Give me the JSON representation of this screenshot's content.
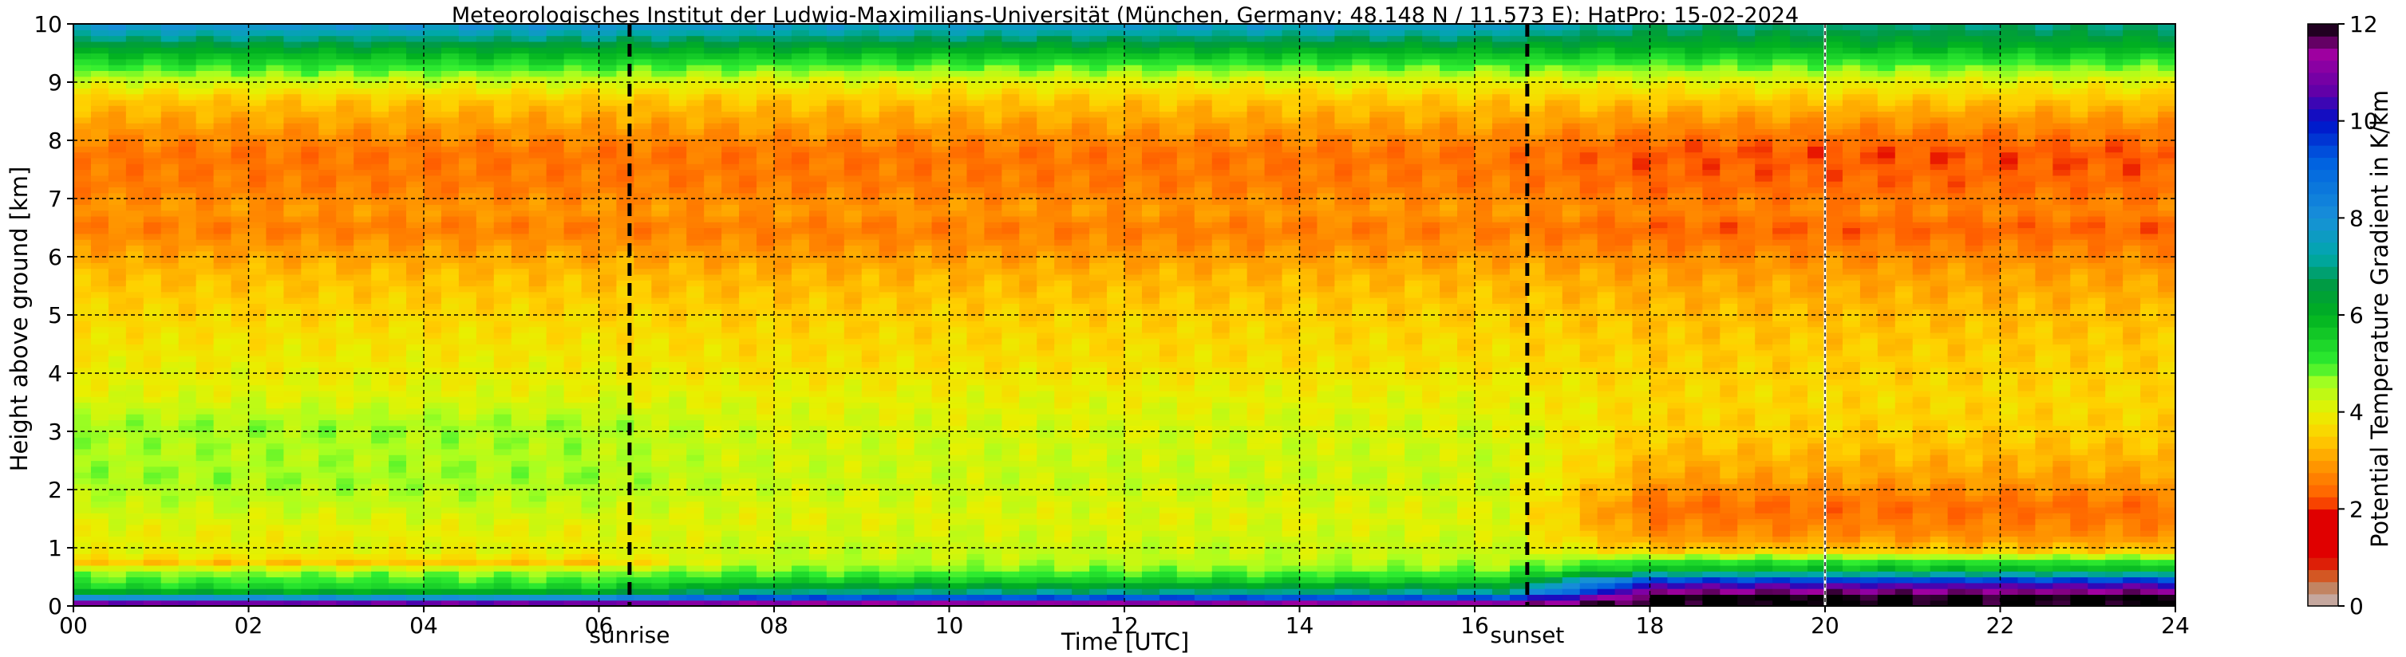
{
  "chart_data": {
    "type": "heatmap",
    "title": "Meteorologisches Institut der Ludwig-Maximilians-Universität (München, Germany; 48.148 N / 11.573 E):    HatPro: 15-02-2024",
    "xlabel": "Time [UTC]",
    "ylabel": "Height above ground [km]",
    "xlim": [
      0,
      24
    ],
    "ylim": [
      0,
      10
    ],
    "x_ticks": [
      0,
      2,
      4,
      6,
      8,
      10,
      12,
      14,
      16,
      18,
      20,
      22,
      24
    ],
    "x_tick_labels": [
      "00",
      "02",
      "04",
      "06",
      "08",
      "10",
      "12",
      "14",
      "16",
      "18",
      "20",
      "22",
      "24"
    ],
    "y_ticks": [
      0,
      1,
      2,
      3,
      4,
      5,
      6,
      7,
      8,
      9,
      10
    ],
    "y_tick_labels": [
      "0",
      "1",
      "2",
      "3",
      "4",
      "5",
      "6",
      "7",
      "8",
      "9",
      "10"
    ],
    "grid": true,
    "events": [
      {
        "label": "sunrise",
        "time": 6.35
      },
      {
        "label": "sunset",
        "time": 16.6
      }
    ],
    "data_gap_time": 20.0,
    "colorbar": {
      "label": "Potential Temperature Gradient in K/km",
      "range": [
        0,
        12
      ],
      "ticks": [
        0,
        2,
        4,
        6,
        8,
        10,
        12
      ],
      "stops": [
        {
          "v": 0.0,
          "c": "#c8b8bc"
        },
        {
          "v": 0.35,
          "c": "#c08868"
        },
        {
          "v": 0.7,
          "c": "#d84a10"
        },
        {
          "v": 1.0,
          "c": "#e00000"
        },
        {
          "v": 1.9,
          "c": "#e00000"
        },
        {
          "v": 2.2,
          "c": "#ff5a00"
        },
        {
          "v": 3.0,
          "c": "#ffa000"
        },
        {
          "v": 3.5,
          "c": "#ffd000"
        },
        {
          "v": 4.0,
          "c": "#e8f000"
        },
        {
          "v": 4.6,
          "c": "#a8ff20"
        },
        {
          "v": 5.0,
          "c": "#30ee30"
        },
        {
          "v": 6.0,
          "c": "#00b020"
        },
        {
          "v": 6.6,
          "c": "#009a40"
        },
        {
          "v": 7.2,
          "c": "#00a8a8"
        },
        {
          "v": 8.0,
          "c": "#1890d8"
        },
        {
          "v": 9.2,
          "c": "#0060e0"
        },
        {
          "v": 10.0,
          "c": "#0010c8"
        },
        {
          "v": 10.6,
          "c": "#6000a8"
        },
        {
          "v": 11.4,
          "c": "#a000a0"
        },
        {
          "v": 12.0,
          "c": "#000000"
        }
      ]
    },
    "profile_km_vs_gradient": {
      "night_before_sunrise": [
        [
          0.0,
          12.0
        ],
        [
          0.08,
          10.0
        ],
        [
          0.18,
          7.0
        ],
        [
          0.3,
          5.5
        ],
        [
          0.45,
          5.0
        ],
        [
          0.6,
          4.6
        ],
        [
          0.75,
          3.4
        ],
        [
          0.9,
          4.0
        ],
        [
          1.3,
          4.0
        ],
        [
          1.8,
          4.4
        ],
        [
          2.2,
          4.6
        ],
        [
          2.6,
          4.5
        ],
        [
          3.1,
          4.6
        ],
        [
          3.6,
          4.1
        ],
        [
          4.2,
          3.9
        ],
        [
          5.0,
          3.6
        ],
        [
          5.7,
          3.3
        ],
        [
          6.2,
          2.9
        ],
        [
          6.5,
          2.6
        ],
        [
          6.8,
          2.9
        ],
        [
          7.2,
          2.6
        ],
        [
          7.8,
          2.5
        ],
        [
          8.3,
          3.0
        ],
        [
          8.7,
          3.4
        ],
        [
          9.0,
          4.2
        ],
        [
          9.3,
          5.2
        ],
        [
          9.6,
          6.3
        ],
        [
          10.0,
          8.0
        ]
      ],
      "daytime": [
        [
          0.0,
          12.0
        ],
        [
          0.12,
          10.0
        ],
        [
          0.25,
          7.0
        ],
        [
          0.45,
          5.5
        ],
        [
          0.6,
          4.8
        ],
        [
          0.8,
          4.4
        ],
        [
          1.5,
          4.1
        ],
        [
          2.2,
          4.3
        ],
        [
          3.0,
          4.2
        ],
        [
          3.6,
          4.0
        ],
        [
          4.2,
          3.7
        ],
        [
          5.0,
          3.5
        ],
        [
          5.7,
          3.2
        ],
        [
          6.2,
          2.8
        ],
        [
          6.5,
          2.6
        ],
        [
          6.8,
          2.9
        ],
        [
          7.2,
          2.6
        ],
        [
          7.8,
          2.5
        ],
        [
          8.3,
          3.0
        ],
        [
          8.7,
          3.4
        ],
        [
          9.0,
          4.0
        ],
        [
          9.3,
          5.0
        ],
        [
          9.6,
          6.2
        ],
        [
          10.0,
          7.8
        ]
      ],
      "evening_after_sunset": [
        [
          0.0,
          12.0
        ],
        [
          0.2,
          12.0
        ],
        [
          0.3,
          11.0
        ],
        [
          0.45,
          9.5
        ],
        [
          0.6,
          6.0
        ],
        [
          0.8,
          5.0
        ],
        [
          0.95,
          3.5
        ],
        [
          1.2,
          2.8
        ],
        [
          1.7,
          2.4
        ],
        [
          2.2,
          3.0
        ],
        [
          3.0,
          3.5
        ],
        [
          3.6,
          3.6
        ],
        [
          4.2,
          3.5
        ],
        [
          5.0,
          3.3
        ],
        [
          5.7,
          3.0
        ],
        [
          6.2,
          2.6
        ],
        [
          6.5,
          2.3
        ],
        [
          6.8,
          2.7
        ],
        [
          7.2,
          2.4
        ],
        [
          7.8,
          2.2
        ],
        [
          8.3,
          2.8
        ],
        [
          8.7,
          3.4
        ],
        [
          9.0,
          4.0
        ],
        [
          9.3,
          4.9
        ],
        [
          9.6,
          6.0
        ],
        [
          10.0,
          7.0
        ]
      ]
    }
  }
}
